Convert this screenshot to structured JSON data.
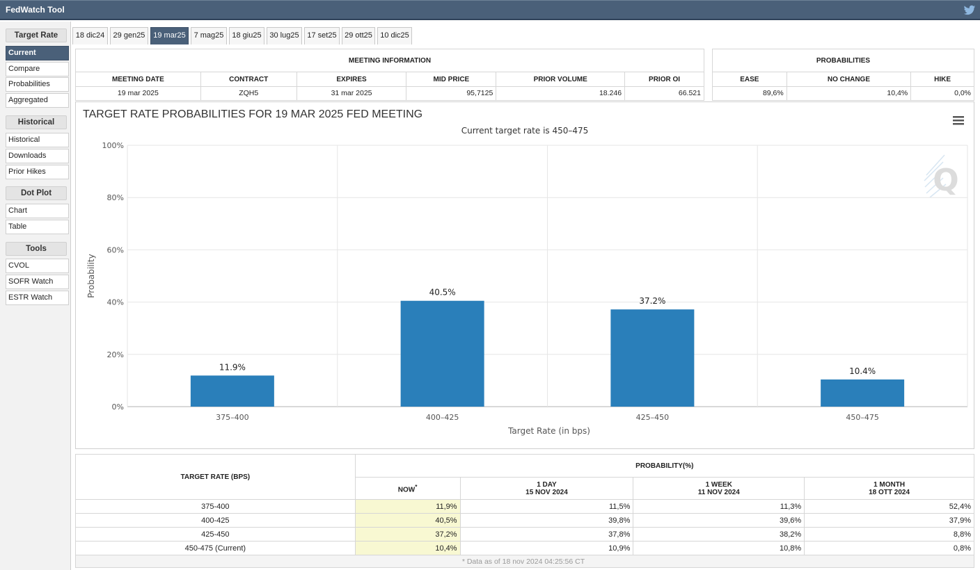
{
  "app": {
    "title": "FedWatch Tool"
  },
  "sidebar": {
    "groups": [
      {
        "header": "Target Rate",
        "items": [
          "Current",
          "Compare",
          "Probabilities",
          "Aggregated"
        ]
      },
      {
        "header": "Historical",
        "items": [
          "Historical",
          "Downloads",
          "Prior Hikes"
        ]
      },
      {
        "header": "Dot Plot",
        "items": [
          "Chart",
          "Table"
        ]
      },
      {
        "header": "Tools",
        "items": [
          "CVOL",
          "SOFR Watch",
          "ESTR Watch"
        ]
      }
    ],
    "active_item": "Current"
  },
  "tabs": [
    "18 dic24",
    "29 gen25",
    "19 mar25",
    "7 mag25",
    "18 giu25",
    "30 lug25",
    "17 set25",
    "29 ott25",
    "10 dic25"
  ],
  "active_tab": "19 mar25",
  "meeting_info": {
    "caption": "MEETING INFORMATION",
    "headers": [
      "MEETING DATE",
      "CONTRACT",
      "EXPIRES",
      "MID PRICE",
      "PRIOR VOLUME",
      "PRIOR OI"
    ],
    "values": [
      "19 mar 2025",
      "ZQH5",
      "31 mar 2025",
      "95,7125",
      "18.246",
      "66.521"
    ]
  },
  "probabilities": {
    "caption": "PROBABILITIES",
    "headers": [
      "EASE",
      "NO CHANGE",
      "HIKE"
    ],
    "values": [
      "89,6%",
      "10,4%",
      "0,0%"
    ]
  },
  "chart_data": {
    "type": "bar",
    "title": "TARGET RATE PROBABILITIES FOR 19 MAR 2025 FED MEETING",
    "subtitle": "Current target rate is 450–475",
    "xlabel": "Target Rate (in bps)",
    "ylabel": "Probability",
    "categories": [
      "375–400",
      "400–425",
      "425–450",
      "450–475"
    ],
    "values": [
      11.9,
      40.5,
      37.2,
      10.4
    ],
    "data_labels": [
      "11.9%",
      "40.5%",
      "37.2%",
      "10.4%"
    ],
    "ylim": [
      0,
      100
    ],
    "yticks": [
      "0%",
      "20%",
      "40%",
      "60%",
      "80%",
      "100%"
    ],
    "ytick_values": [
      0,
      20,
      40,
      60,
      80,
      100
    ],
    "grid": true,
    "bar_color": "#2a7fba",
    "watermark": "Q"
  },
  "prob_table": {
    "col_header": "TARGET RATE (BPS)",
    "group_header": "PROBABILITY(%)",
    "sub_headers": [
      {
        "line1": "NOW",
        "mark": "*",
        "line2": ""
      },
      {
        "line1": "1 DAY",
        "line2": "15 NOV 2024"
      },
      {
        "line1": "1 WEEK",
        "line2": "11 NOV 2024"
      },
      {
        "line1": "1 MONTH",
        "line2": "18 OTT 2024"
      }
    ],
    "rows": [
      {
        "rate": "375-400",
        "now": "11,9%",
        "day": "11,5%",
        "week": "11,3%",
        "month": "52,4%"
      },
      {
        "rate": "400-425",
        "now": "40,5%",
        "day": "39,8%",
        "week": "39,6%",
        "month": "37,9%"
      },
      {
        "rate": "425-450",
        "now": "37,2%",
        "day": "37,8%",
        "week": "38,2%",
        "month": "8,8%"
      },
      {
        "rate": "450-475 (Current)",
        "now": "10,4%",
        "day": "10,9%",
        "week": "10,8%",
        "month": "0,8%"
      }
    ],
    "footnote": "* Data as of 18 nov 2024 04:25:56 CT"
  }
}
